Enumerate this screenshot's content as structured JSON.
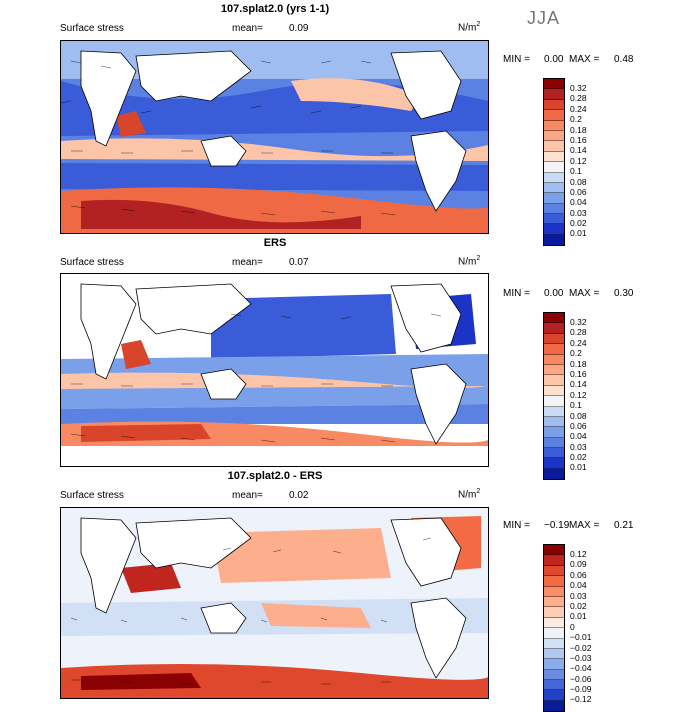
{
  "season": "JJA",
  "panels": [
    {
      "title": "107.splat2.0 (yrs 1-1)",
      "field": "Surface stress",
      "mean_label": "mean=",
      "mean_value": "0.09",
      "units": "N/m",
      "units_exp": "2",
      "min_label": "MIN =",
      "min_value": "0.00",
      "max_label": "MAX =",
      "max_value": "0.48",
      "colorbar_levels": [
        "0.32",
        "0.28",
        "0.24",
        "0.2",
        "0.18",
        "0.16",
        "0.14",
        "0.12",
        "0.1",
        "0.08",
        "0.06",
        "0.04",
        "0.03",
        "0.02",
        "0.01"
      ],
      "colorbar_colors": [
        "#8b0000",
        "#b22222",
        "#d9452b",
        "#ef6a44",
        "#f78a62",
        "#fba785",
        "#fcc4a9",
        "#fde0cf",
        "#f4f4f6",
        "#c8daf5",
        "#9fbdf0",
        "#7aa0ea",
        "#5b82e2",
        "#3a5cd8",
        "#1c33c8",
        "#0a1a9c"
      ]
    },
    {
      "title": "ERS",
      "field": "Surface stress",
      "mean_label": "mean=",
      "mean_value": "0.07",
      "units": "N/m",
      "units_exp": "2",
      "min_label": "MIN =",
      "min_value": "0.00",
      "max_label": "MAX =",
      "max_value": "0.30",
      "colorbar_levels": [
        "0.32",
        "0.28",
        "0.24",
        "0.2",
        "0.18",
        "0.16",
        "0.14",
        "0.12",
        "0.1",
        "0.08",
        "0.06",
        "0.04",
        "0.03",
        "0.02",
        "0.01"
      ],
      "colorbar_colors": [
        "#8b0000",
        "#b22222",
        "#d9452b",
        "#ef6a44",
        "#f78a62",
        "#fba785",
        "#fcc4a9",
        "#fde0cf",
        "#f4f4f6",
        "#c8daf5",
        "#9fbdf0",
        "#7aa0ea",
        "#5b82e2",
        "#3a5cd8",
        "#1c33c8",
        "#0a1a9c"
      ]
    },
    {
      "title": "107.splat2.0 - ERS",
      "field": "Surface stress",
      "mean_label": "mean=",
      "mean_value": "0.02",
      "units": "N/m",
      "units_exp": "2",
      "min_label": "MIN =",
      "min_value": "−0.19",
      "max_label": "MAX =",
      "max_value": "0.21",
      "colorbar_levels": [
        "0.12",
        "0.09",
        "0.06",
        "0.04",
        "0.03",
        "0.02",
        "0.01",
        "0",
        "−0.01",
        "−0.02",
        "−0.03",
        "−0.04",
        "−0.06",
        "−0.09",
        "−0.12"
      ],
      "colorbar_colors": [
        "#8b0000",
        "#c0261e",
        "#e0482e",
        "#f36b45",
        "#f98d68",
        "#fcae8d",
        "#fdccb4",
        "#fdeae0",
        "#eef2fa",
        "#d2e0f6",
        "#b1c9f1",
        "#8badea",
        "#6a8de3",
        "#4466d9",
        "#2240c8",
        "#0b1b96"
      ]
    }
  ]
}
